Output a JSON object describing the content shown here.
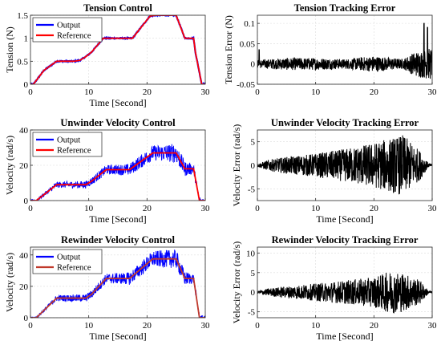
{
  "chart_data": [
    {
      "type": "line",
      "title": "Tension Control",
      "xlabel": "Time [Second]",
      "ylabel": "Tension (N)",
      "xlim": [
        0,
        30
      ],
      "ylim": [
        0,
        1.5
      ],
      "xticks": [
        "0",
        "10",
        "20",
        "30"
      ],
      "yticks": [
        "0",
        "0.5",
        "1",
        "1.5"
      ],
      "grid": true,
      "legend": "top-left",
      "series": [
        {
          "name": "Output",
          "color": "#0000ff",
          "noise": 0.012,
          "x": [
            0,
            0.5,
            2.3,
            4.5,
            5.5,
            7.5,
            8.5,
            9.5,
            10.5,
            12.5,
            14.5,
            16.5,
            17.5,
            20.5,
            21.5,
            25.0,
            26.5,
            28.0,
            28.3,
            29.4,
            30
          ],
          "y": [
            0,
            0,
            0.3,
            0.5,
            0.5,
            0.5,
            0.52,
            0.6,
            0.7,
            1.0,
            1.0,
            1.0,
            1.0,
            1.48,
            1.5,
            1.5,
            1.0,
            1.0,
            0.7,
            0.0,
            0.0
          ]
        },
        {
          "name": "Reference",
          "color": "#ff0000",
          "noise": 0,
          "x": [
            0,
            0.5,
            2.3,
            4.5,
            5.5,
            7.5,
            8.5,
            9.5,
            10.5,
            12.5,
            14.5,
            16.5,
            17.5,
            20.5,
            21.5,
            25.0,
            26.5,
            28.0,
            28.3,
            29.4,
            30
          ],
          "y": [
            0,
            0,
            0.3,
            0.5,
            0.5,
            0.5,
            0.52,
            0.6,
            0.7,
            1.0,
            1.0,
            1.0,
            1.0,
            1.48,
            1.5,
            1.5,
            1.0,
            1.0,
            0.7,
            0.0,
            0.0
          ]
        }
      ]
    },
    {
      "type": "line",
      "title": "Tension Tracking Error",
      "xlabel": "",
      "ylabel": "Tension Error (N)",
      "xlim": [
        0,
        30
      ],
      "ylim": [
        -0.05,
        0.12
      ],
      "xticks": [
        "0",
        "10",
        "20",
        "30"
      ],
      "yticks": [
        "-0.05",
        "0",
        "0.05",
        "0.1"
      ],
      "grid": true,
      "series": [
        {
          "color": "#000000",
          "amplitude_envelope": {
            "x": [
              0,
              5,
              10,
              15,
              20,
              25,
              27,
              30
            ],
            "y": [
              0.01,
              0.015,
              0.015,
              0.012,
              0.02,
              0.012,
              0.03,
              0.04
            ]
          },
          "peaks": {
            "x": [
              0.3,
              28.6,
              29.2
            ],
            "y": [
              0.035,
              0.1,
              0.09
            ]
          }
        }
      ]
    },
    {
      "type": "line",
      "title": "Unwinder Velocity Control",
      "xlabel": "Time [Second]",
      "ylabel": "Velocity (rad/s)",
      "xlim": [
        0,
        30
      ],
      "ylim": [
        0,
        40
      ],
      "xticks": [
        "0",
        "10",
        "20",
        "30"
      ],
      "yticks": [
        "0",
        "20",
        "40"
      ],
      "grid": true,
      "legend": "top-left",
      "series": [
        {
          "name": "Output",
          "color": "#0000ff",
          "band_envelope": {
            "x": [
              0,
              5,
              10,
              15,
              20,
              25,
              28,
              30
            ],
            "y": [
              0.5,
              1.8,
              2.2,
              3.0,
              4.0,
              5.5,
              3.0,
              1.0
            ]
          }
        },
        {
          "name": "Reference",
          "color": "#ff0000",
          "x": [
            0,
            1,
            4.5,
            9.5,
            10.5,
            13.0,
            17.0,
            21.0,
            25.0,
            26.5,
            28.0,
            29.0,
            30
          ],
          "y": [
            0,
            0,
            9,
            9,
            11,
            17.5,
            17.5,
            27,
            27,
            18,
            18,
            0,
            0
          ]
        }
      ]
    },
    {
      "type": "line",
      "title": "Unwinder Velocity Tracking Error",
      "xlabel": "Time [Second]",
      "ylabel": "Velocity Error (rad/s)",
      "xlim": [
        0,
        30
      ],
      "ylim": [
        -7.5,
        7.5
      ],
      "xticks": [
        "0",
        "10",
        "20",
        "30"
      ],
      "yticks": [
        "-5",
        "0",
        "5"
      ],
      "grid": true,
      "series": [
        {
          "color": "#000000",
          "amplitude_envelope": {
            "x": [
              0,
              2,
              5,
              10,
              15,
              20,
              25,
              28,
              29.3,
              30
            ],
            "y": [
              0.3,
              1.2,
              1.8,
              2.5,
              3.5,
              4.8,
              6.5,
              3.0,
              0.5,
              0.2
            ]
          }
        }
      ]
    },
    {
      "type": "line",
      "title": "Rewinder Velocity Control",
      "xlabel": "Time [Second]",
      "ylabel": "Velocity (rad/s)",
      "xlim": [
        0,
        30
      ],
      "ylim": [
        0,
        45
      ],
      "xticks": [
        "0",
        "10",
        "20",
        "30"
      ],
      "yticks": [
        "0",
        "20",
        "40"
      ],
      "grid": true,
      "legend": "top-left",
      "series": [
        {
          "name": "Output",
          "color": "#0000ff",
          "band_envelope": {
            "x": [
              0,
              5,
              10,
              15,
              20,
              25,
              28,
              30
            ],
            "y": [
              0.5,
              2.0,
              2.5,
              3.5,
              4.8,
              6.0,
              3.0,
              1.0
            ]
          }
        },
        {
          "name": "Reference",
          "color": "#c0392b",
          "x": [
            0,
            1,
            4.5,
            9.5,
            10.5,
            13.0,
            17.0,
            21.0,
            25.0,
            26.5,
            28.0,
            29.0,
            30
          ],
          "y": [
            0,
            0,
            12.5,
            12.5,
            15,
            25,
            25,
            37.5,
            37.5,
            25,
            25,
            0,
            0
          ]
        }
      ]
    },
    {
      "type": "line",
      "title": "Rewinder Velocity Tracking Error",
      "xlabel": "Time [Second]",
      "ylabel": "Velocity Error (rad/s)",
      "xlim": [
        0,
        30
      ],
      "ylim": [
        -6.5,
        11.5
      ],
      "xticks": [
        "0",
        "10",
        "20",
        "30"
      ],
      "yticks": [
        "-5",
        "0",
        "5",
        "10"
      ],
      "grid": true,
      "series": [
        {
          "color": "#000000",
          "amplitude_envelope": {
            "x": [
              0,
              2,
              5,
              10,
              15,
              20,
              23,
              25,
              28,
              29.3,
              30
            ],
            "y": [
              0.3,
              1.0,
              1.5,
              2.2,
              3.0,
              3.8,
              5.5,
              5.0,
              3.0,
              0.5,
              0.2
            ]
          }
        }
      ]
    }
  ]
}
